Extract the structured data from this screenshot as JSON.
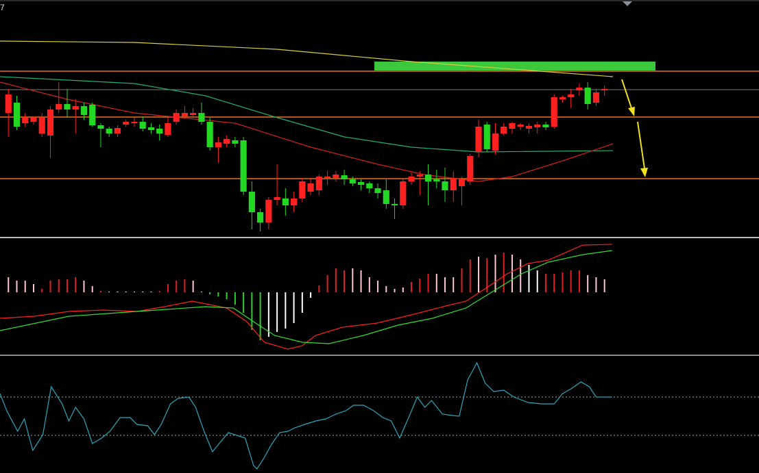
{
  "chart_data": [
    {
      "type": "candlestick",
      "label": "7",
      "xlim": [
        -1,
        89.4
      ],
      "ylim": [
        0,
        345
      ],
      "up_color": "#ff2020",
      "down_color": "#22d822",
      "open": [
        180,
        195,
        165,
        167,
        150,
        147,
        185,
        193,
        185,
        190,
        192,
        162,
        157,
        150,
        163,
        165,
        167,
        159,
        157,
        148,
        167,
        175,
        177,
        180,
        167,
        130,
        135,
        140,
        140,
        65,
        35,
        20,
        53,
        55,
        45,
        55,
        65,
        67,
        85,
        85,
        89,
        83,
        79,
        77,
        70,
        67,
        47,
        45,
        80,
        87,
        90,
        83,
        80,
        67,
        73,
        80,
        123,
        163,
        125,
        150,
        157,
        160,
        157,
        159,
        163,
        160,
        200,
        203,
        213,
        217,
        195,
        213
      ],
      "close": [
        207,
        160,
        173,
        173,
        173,
        185,
        193,
        185,
        190,
        177,
        162,
        157,
        150,
        158,
        167,
        167,
        157,
        155,
        150,
        165,
        180,
        180,
        180,
        167,
        130,
        137,
        142,
        135,
        65,
        35,
        20,
        53,
        57,
        45,
        55,
        80,
        77,
        87,
        87,
        90,
        83,
        77,
        75,
        70,
        63,
        47,
        45,
        80,
        87,
        90,
        80,
        80,
        67,
        85,
        83,
        117,
        160,
        127,
        150,
        160,
        165,
        163,
        161,
        163,
        159,
        203,
        203,
        207,
        217,
        193,
        210,
        215
      ],
      "high": [
        215,
        205,
        180,
        175,
        180,
        190,
        225,
        215,
        200,
        195,
        195,
        165,
        160,
        162,
        170,
        173,
        175,
        165,
        163,
        173,
        185,
        190,
        187,
        195,
        173,
        145,
        147,
        145,
        145,
        80,
        40,
        57,
        105,
        70,
        65,
        85,
        85,
        90,
        95,
        95,
        97,
        87,
        83,
        80,
        77,
        83,
        55,
        83,
        93,
        95,
        105,
        97,
        100,
        95,
        87,
        120,
        170,
        167,
        165,
        165,
        167,
        165,
        165,
        167,
        167,
        207,
        205,
        215,
        223,
        225,
        215,
        220
      ],
      "low": [
        145,
        155,
        160,
        163,
        145,
        115,
        180,
        173,
        150,
        170,
        160,
        130,
        145,
        145,
        160,
        160,
        153,
        150,
        140,
        145,
        163,
        173,
        175,
        163,
        125,
        107,
        130,
        130,
        60,
        10,
        7,
        10,
        45,
        30,
        35,
        50,
        60,
        60,
        75,
        80,
        75,
        73,
        67,
        63,
        55,
        40,
        25,
        40,
        75,
        60,
        45,
        70,
        50,
        50,
        45,
        75,
        115,
        123,
        120,
        147,
        150,
        155,
        150,
        150,
        155,
        157,
        195,
        187,
        205,
        185,
        190,
        205
      ],
      "lines": [
        {
          "color": "#d8d040",
          "x": [
            -1,
            15,
            32,
            48,
            72
          ],
          "values": [
            285,
            283,
            273,
            255,
            233
          ]
        },
        {
          "color": "#20b070",
          "x": [
            -1,
            15,
            23.5,
            31.5,
            40,
            48,
            56,
            72
          ],
          "values": [
            233,
            223,
            205,
            175,
            145,
            130,
            123,
            125
          ]
        },
        {
          "color": "#d02020",
          "x": [
            -1,
            7,
            15,
            27,
            36,
            44,
            49.5,
            56,
            60,
            66,
            72
          ],
          "values": [
            225,
            200,
            180,
            165,
            130,
            105,
            90,
            80,
            87,
            110,
            135
          ]
        }
      ]
    },
    {
      "type": "macd",
      "xlim": [
        -1,
        89.4
      ],
      "ylim": [
        -91,
        79
      ],
      "bars": [
        22,
        17,
        17,
        12,
        5,
        17,
        19,
        19,
        22,
        17,
        9,
        2,
        1,
        1,
        1,
        1,
        1,
        1,
        2,
        12,
        17,
        19,
        17,
        1,
        -3,
        -6,
        -10,
        -18,
        -30,
        -55,
        -70,
        -65,
        -58,
        -53,
        -45,
        -30,
        -8,
        10,
        25,
        35,
        32,
        35,
        32,
        22,
        17,
        9,
        5,
        7,
        15,
        20,
        27,
        27,
        22,
        22,
        35,
        48,
        52,
        50,
        55,
        58,
        55,
        48,
        40,
        32,
        27,
        27,
        29,
        32,
        32,
        25,
        22,
        19
      ],
      "bar_colors": [
        "#ffc8d0",
        "#ffc8d0",
        "#ffc8d0",
        "#ffc8d0",
        "#e02020",
        "#e02020",
        "#e02020",
        "#e02020",
        "#e02020",
        "#ffc8d0",
        "#ffc8d0",
        "#e02020",
        "#ffffff",
        "#ffffff",
        "#ffffff",
        "#ffffff",
        "#ffffff",
        "#ffffff",
        "#e02020",
        "#e02020",
        "#e02020",
        "#e02020",
        "#ffc8d0",
        "#ffc8d0",
        "#30d030",
        "#30d030",
        "#30d030",
        "#30d030",
        "#30d030",
        "#30d030",
        "#30d030",
        "#ffffff",
        "#ffffff",
        "#ffffff",
        "#ffffff",
        "#ffffff",
        "#ffffff",
        "#e02020",
        "#e02020",
        "#e02020",
        "#e02020",
        "#ffc8d0",
        "#ffc8d0",
        "#ffc8d0",
        "#ffc8d0",
        "#ffc8d0",
        "#ffc8d0",
        "#ffc8d0",
        "#e02020",
        "#e02020",
        "#e02020",
        "#ffc8d0",
        "#ffc8d0",
        "#ffc8d0",
        "#e02020",
        "#e02020",
        "#ffc8d0",
        "#e02020",
        "#ffc8d0",
        "#e02020",
        "#ffc8d0",
        "#ffc8d0",
        "#ffffff",
        "#ffffff",
        "#e02020",
        "#e02020",
        "#e02020",
        "#e02020",
        "#e02020",
        "#ffc8d0",
        "#ffc8d0",
        "#ffc8d0"
      ],
      "lines": [
        {
          "color": "#ff2020",
          "x": [
            -1,
            3.1,
            7.2,
            11.3,
            15.3,
            18.6,
            21.9,
            26,
            28.4,
            30.5,
            33.3,
            35,
            36.6,
            39.8,
            43.9,
            48,
            52.1,
            54.5,
            57,
            59.4,
            61.9,
            64.3,
            68.4,
            71.9
          ],
          "values": [
            -38,
            -35,
            -28,
            -26,
            -28,
            -21,
            -13,
            -23,
            -43,
            -73,
            -83,
            -78,
            -63,
            -51,
            -45,
            -33,
            -20,
            -13,
            7,
            27,
            42,
            47,
            69,
            70
          ]
        },
        {
          "color": "#30e030",
          "x": [
            -1,
            7.2,
            15.3,
            23.5,
            26.8,
            29.2,
            31.7,
            35,
            38.2,
            42.3,
            46.4,
            50.5,
            54.5,
            57.8,
            61.1,
            64.3,
            68.4,
            71.9
          ],
          "values": [
            -56,
            -35,
            -28,
            -21,
            -23,
            -43,
            -63,
            -73,
            -75,
            -63,
            -48,
            -38,
            -23,
            2,
            27,
            44,
            55,
            61
          ]
        }
      ]
    },
    {
      "type": "line",
      "xlim": [
        -1,
        89.4
      ],
      "ylim": [
        0,
        171
      ],
      "color": "#2aa8bc",
      "reference_lines": [
        111,
        55
      ],
      "x": [
        -1.0,
        -0.2,
        1.1,
        1.9,
        2.9,
        4.1,
        5.1,
        6.4,
        7.2,
        8.0,
        9.0,
        10.0,
        11.1,
        12.1,
        13.3,
        14.5,
        15.3,
        16.6,
        17.4,
        18.2,
        19.3,
        20.2,
        21.5,
        22.3,
        23.3,
        24.3,
        25.3,
        26.2,
        27.2,
        28.2,
        29.2,
        29.6,
        30.4,
        31.3,
        32.3,
        33.3,
        34.1,
        35.3,
        36.6,
        37.8,
        39.0,
        40.2,
        41.1,
        42.3,
        43.5,
        44.6,
        45.6,
        46.6,
        47.6,
        48.7,
        49.6,
        50.4,
        51.7,
        52.9,
        53.7,
        54.7,
        55.8,
        56.8,
        57.8,
        59.0,
        60.2,
        61.9,
        63.5,
        65.0,
        66.0,
        67.0,
        68.2,
        69.2,
        70.0,
        71.9
      ],
      "values": [
        116,
        91,
        61,
        79,
        33,
        56,
        126,
        101,
        76,
        96,
        79,
        43,
        51,
        61,
        81,
        81,
        71,
        69,
        56,
        71,
        101,
        109,
        111,
        96,
        61,
        31,
        46,
        59,
        55,
        51,
        11,
        6,
        21,
        41,
        59,
        61,
        66,
        71,
        76,
        79,
        86,
        91,
        99,
        99,
        91,
        81,
        76,
        51,
        79,
        111,
        96,
        106,
        86,
        84,
        83,
        136,
        161,
        131,
        119,
        121,
        111,
        103,
        101,
        101,
        116,
        123,
        133,
        126,
        111,
        111
      ]
    }
  ]
}
